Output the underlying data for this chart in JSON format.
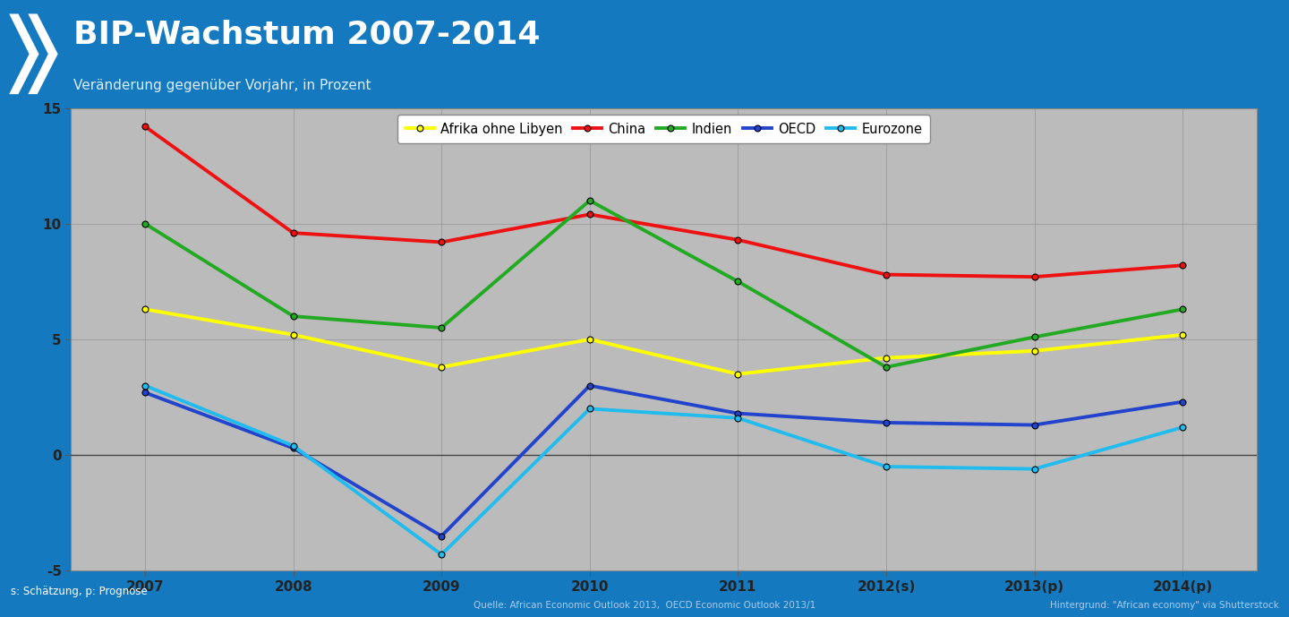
{
  "title": "BIP-Wachstum 2007-2014",
  "subtitle": "Veränderung gegenüber Vorjahr, in Prozent",
  "x_labels": [
    "2007",
    "2008",
    "2009",
    "2010",
    "2011",
    "2012(s)",
    "2013(p)",
    "2014(p)"
  ],
  "x_positions": [
    0,
    1,
    2,
    3,
    4,
    5,
    6,
    7
  ],
  "series_order": [
    "Afrika ohne Libyen",
    "China",
    "Indien",
    "OECD",
    "Eurozone"
  ],
  "series": {
    "Afrika ohne Libyen": {
      "values": [
        6.3,
        5.2,
        3.8,
        5.0,
        3.5,
        4.2,
        4.5,
        5.2
      ],
      "color": "#FFFF00",
      "linewidth": 2.8
    },
    "China": {
      "values": [
        14.2,
        9.6,
        9.2,
        10.4,
        9.3,
        7.8,
        7.7,
        8.2
      ],
      "color": "#EE1111",
      "linewidth": 2.8
    },
    "Indien": {
      "values": [
        10.0,
        6.0,
        5.5,
        11.0,
        7.5,
        3.8,
        5.1,
        6.3
      ],
      "color": "#22AA22",
      "linewidth": 2.8
    },
    "OECD": {
      "values": [
        2.7,
        0.3,
        -3.5,
        3.0,
        1.8,
        1.4,
        1.3,
        2.3
      ],
      "color": "#2244CC",
      "linewidth": 2.8
    },
    "Eurozone": {
      "values": [
        3.0,
        0.4,
        -4.3,
        2.0,
        1.6,
        -0.5,
        -0.6,
        1.2
      ],
      "color": "#22BBEE",
      "linewidth": 2.8
    }
  },
  "ylim": [
    -5,
    15
  ],
  "yticks": [
    -5,
    0,
    5,
    10,
    15
  ],
  "header_bg_color": "#1479BE",
  "title_color": "#FFFFFF",
  "subtitle_color": "#DDEEFF",
  "plot_bg_color": "#BBBBBB",
  "grid_color": "#999999",
  "footer_bg_color": "#1479BE",
  "footer_text_left": "s: Schätzung, p: Prognose",
  "footer_text_center": "Quelle: African Economic Outlook 2013,  OECD Economic Outlook 2013/1",
  "footer_text_right": "Hintergrund: \"African economy\" via Shutterstock",
  "marker_style": "o",
  "marker_size": 5,
  "marker_edge_color": "#000000",
  "marker_edge_width": 0.8
}
